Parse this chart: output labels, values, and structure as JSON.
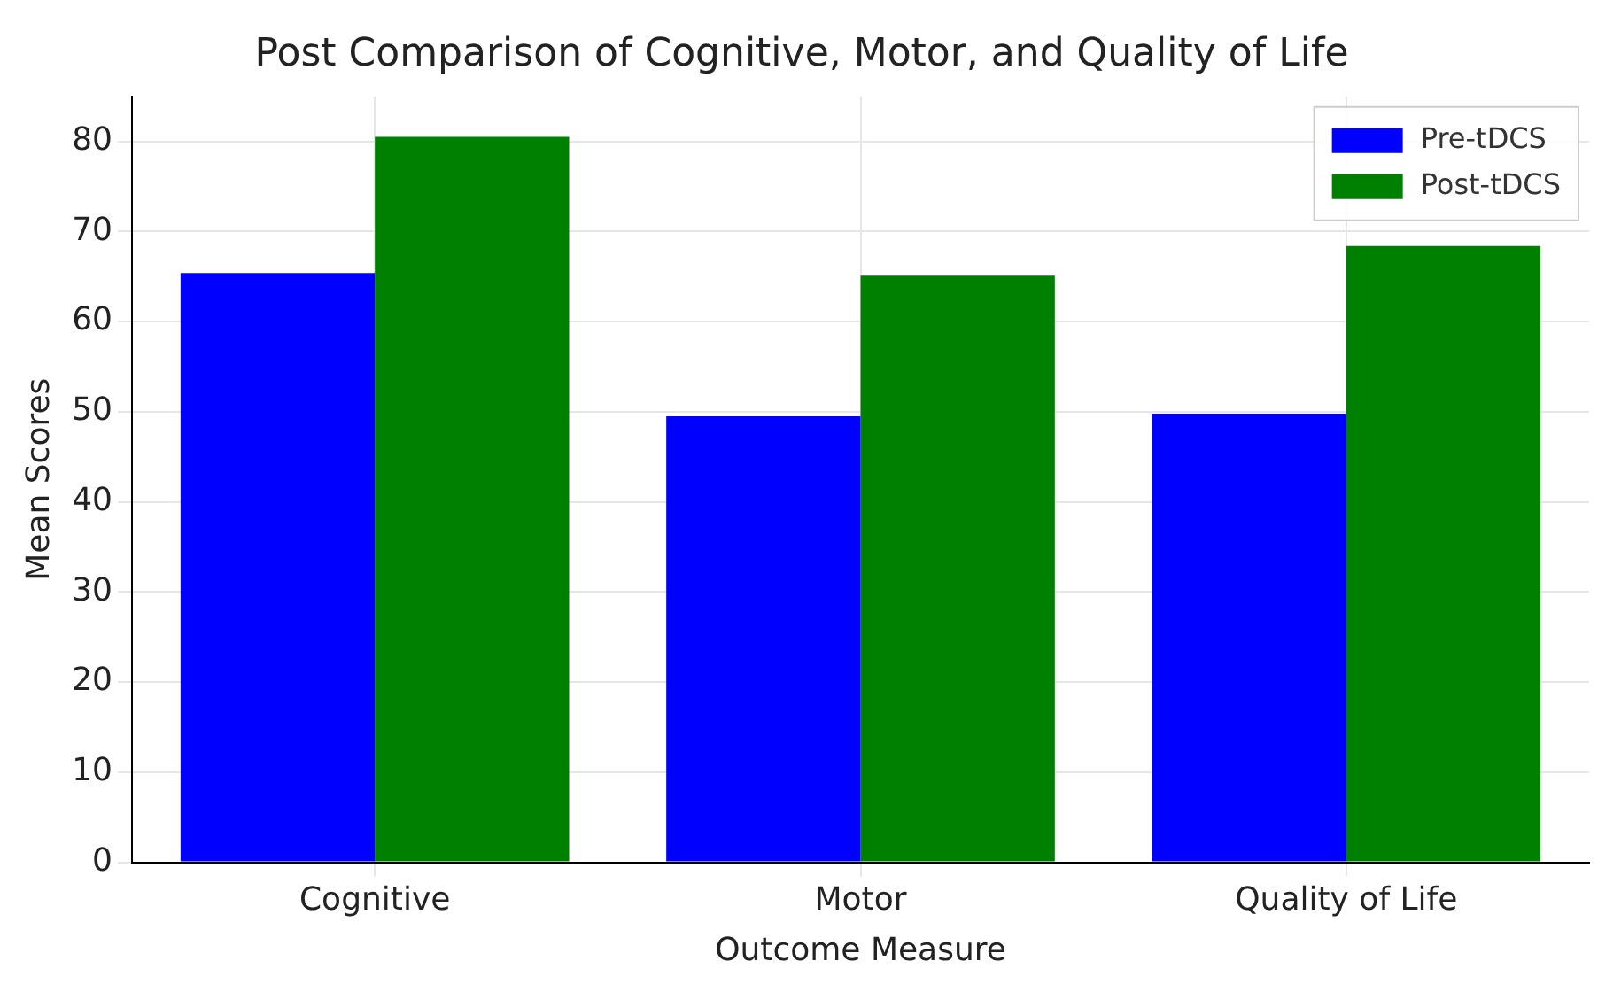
{
  "chart_data": {
    "type": "bar",
    "title": "Post Comparison of Cognitive, Motor, and Quality of Life",
    "xlabel": "Outcome Measure",
    "ylabel": "Mean Scores",
    "categories": [
      "Cognitive",
      "Motor",
      "Quality of Life"
    ],
    "series": [
      {
        "name": "Pre-tDCS",
        "color": "#0000ff",
        "values": [
          65.4,
          49.5,
          49.8
        ]
      },
      {
        "name": "Post-tDCS",
        "color": "#008000",
        "values": [
          80.5,
          65.1,
          68.4
        ]
      }
    ],
    "ylim": [
      0,
      85
    ],
    "yticks": [
      0,
      10,
      20,
      30,
      40,
      50,
      60,
      70,
      80
    ],
    "grid": true,
    "legend": "top right"
  }
}
